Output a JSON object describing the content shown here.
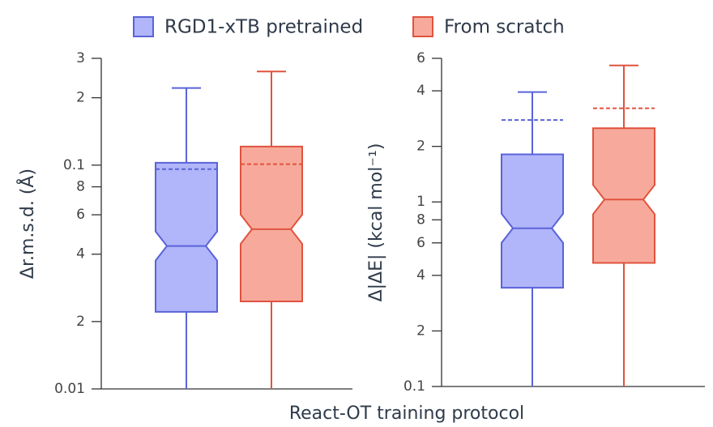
{
  "chart_data": [
    {
      "type": "box",
      "ylabel": "Δr.m.s.d. (Å)",
      "xlabel": "React-OT training protocol",
      "log_y": true,
      "ylim": [
        0.01,
        0.3
      ],
      "yticks": [
        {
          "value": 0.01,
          "label": "0.01"
        },
        {
          "value": 0.02,
          "label": "2"
        },
        {
          "value": 0.04,
          "label": "4"
        },
        {
          "value": 0.06,
          "label": "6"
        },
        {
          "value": 0.08,
          "label": "8"
        },
        0.1,
        {
          "value": 0.2,
          "label": "2"
        },
        {
          "value": 0.3,
          "label": "3"
        }
      ],
      "series": [
        {
          "name": "RGD1-xTB pretrained",
          "color": "#b1b5f9",
          "edge": "#5a63d8",
          "whislo": 0.01,
          "q1": 0.0221,
          "med": 0.0435,
          "q3": 0.1025,
          "whishi": 0.221,
          "mean": 0.0959
        },
        {
          "name": "From scratch",
          "color": "#f7aa9c",
          "edge": "#e0533e",
          "whislo": 0.01,
          "q1": 0.0246,
          "med": 0.0517,
          "q3": 0.121,
          "whishi": 0.262,
          "mean": 0.101
        }
      ]
    },
    {
      "type": "box",
      "ylabel": "Δ|ΔE| (kcal mol⁻¹)",
      "log_y": true,
      "ylim": [
        0.1,
        6
      ],
      "yticks": [
        0.1,
        {
          "value": 0.2,
          "label": "2"
        },
        {
          "value": 0.4,
          "label": "4"
        },
        {
          "value": 0.6,
          "label": "6"
        },
        {
          "value": 0.8,
          "label": "8"
        },
        1,
        2,
        4,
        6
      ],
      "series": [
        {
          "color": "#b1b5f9",
          "edge": "#5a63d8",
          "whislo": 0.1,
          "q1": 0.343,
          "med": 0.72,
          "q3": 1.81,
          "whishi": 3.94,
          "mean": 2.78
        },
        {
          "color": "#f7aa9c",
          "edge": "#e0533e",
          "whislo": 0.1,
          "q1": 0.467,
          "med": 1.03,
          "q3": 2.51,
          "whishi": 5.49,
          "mean": 3.22
        }
      ]
    }
  ]
}
